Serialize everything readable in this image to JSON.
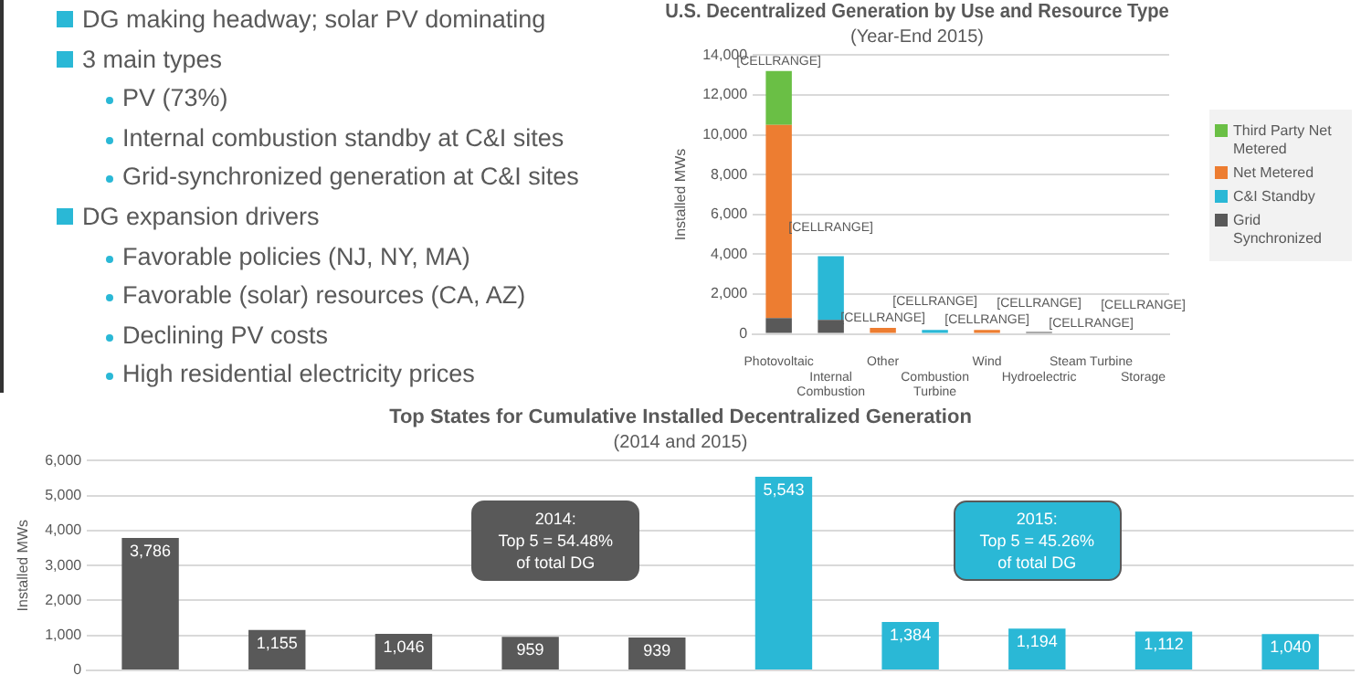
{
  "chart_data": [
    {
      "type": "other",
      "annotations": [
        "DG making headway; solar PV dominating",
        "3 main types",
        "PV (73%)",
        "Internal combustion standby at C&I sites",
        "Grid-synchronized generation at C&I sites",
        "DG expansion drivers",
        "Favorable policies (NJ, NY, MA)",
        "Favorable (solar) resources (CA, AZ)",
        "Declining PV costs",
        "High residential electricity prices"
      ]
    },
    {
      "type": "bar",
      "title": "U.S. Decentralized Generation by Use and Resource Type",
      "subtitle": "(Year-End 2015)",
      "ylabel": "Installed MWs",
      "stacked": true,
      "categories": [
        "Photovoltaic",
        "Internal Combustion",
        "Other",
        "Combustion Turbine",
        "Wind",
        "Hydroelectric",
        "Steam Turbine",
        "Storage"
      ],
      "series": [
        {
          "name": "Grid Synchronized",
          "color": "#595959",
          "values": [
            800,
            700,
            0,
            0,
            0,
            100,
            0,
            0
          ]
        },
        {
          "name": "C&I Standby",
          "color": "#2ab8d6",
          "values": [
            0,
            3200,
            0,
            200,
            0,
            0,
            0,
            0
          ]
        },
        {
          "name": "Net Metered",
          "color": "#ed7d31",
          "values": [
            9700,
            0,
            300,
            0,
            200,
            0,
            0,
            0
          ]
        },
        {
          "name": "Third Party Net Metered",
          "color": "#6abf45",
          "values": [
            2700,
            0,
            0,
            0,
            0,
            0,
            0,
            0
          ]
        }
      ],
      "totals": [
        "[CELLRANGE]",
        "[CELLRANGE]",
        "[CELLRANGE]",
        "[CELLRANGE]",
        "[CELLRANGE]",
        "[CELLRANGE]",
        "[CELLRANGE]",
        "[CELLRANGE]"
      ],
      "ylim": [
        0,
        14000
      ],
      "yticks": [
        0,
        {
          "value": 2000,
          "label": "2,000"
        },
        {
          "value": 4000,
          "label": "4,000"
        },
        {
          "value": 6000,
          "label": "6,000"
        },
        {
          "value": 8000,
          "label": "8,000"
        },
        {
          "value": 10000,
          "label": "10,000"
        },
        {
          "value": 12000,
          "label": "12,000"
        },
        {
          "value": 14000,
          "label": "14,000"
        }
      ],
      "grid": "y",
      "legend": "right"
    },
    {
      "type": "bar",
      "title": "Top States for Cumulative Installed Decentralized Generation",
      "subtitle": "(2014 and 2015)",
      "ylabel": "Installed MWs",
      "categories": [
        null,
        null,
        null,
        null,
        null,
        null,
        null,
        null,
        null,
        null
      ],
      "values": [
        3786,
        1155,
        1046,
        959,
        939,
        5543,
        1384,
        1194,
        1112,
        1040
      ],
      "value_labels": [
        "3,786",
        "1,155",
        "1,046",
        "959",
        "939",
        "5,543",
        "1,384",
        "1,194",
        "1,112",
        "1,040"
      ],
      "colors": [
        "#595959",
        "#595959",
        "#595959",
        "#595959",
        "#595959",
        "#2ab8d6",
        "#2ab8d6",
        "#2ab8d6",
        "#2ab8d6",
        "#2ab8d6"
      ],
      "annotations": [
        "2014:\nTop 5 = 54.48%\nof total DG",
        "2015:\nTop 5 = 45.26%\nof total DG"
      ],
      "ylim": [
        0,
        6000
      ],
      "yticks": [
        0,
        {
          "value": 1000,
          "label": "1,000"
        },
        {
          "value": 2000,
          "label": "2,000"
        },
        {
          "value": 3000,
          "label": "3,000"
        },
        {
          "value": 4000,
          "label": "4,000"
        },
        {
          "value": 5000,
          "label": "5,000"
        },
        {
          "value": 6000,
          "label": "6,000"
        }
      ],
      "grid": "y"
    }
  ]
}
